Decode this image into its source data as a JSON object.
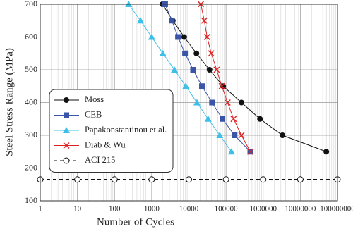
{
  "chart_data": {
    "type": "line",
    "x_label": "Number of Cycles",
    "y_label": "Steel Stress Range (MPa)",
    "xscale": "log",
    "xlim": [
      1,
      100000000
    ],
    "xticks": [
      1,
      10,
      100,
      1000,
      10000,
      100000,
      1000000,
      10000000,
      100000000
    ],
    "ylim": [
      100,
      700
    ],
    "yticks": [
      100,
      200,
      300,
      400,
      500,
      600,
      700
    ],
    "grid": true,
    "legend": "lower left",
    "series": [
      {
        "name": "Moss",
        "color": "#111111",
        "marker": "circle",
        "x": [
          1950,
          3700,
          7500,
          16000,
          36000,
          84000,
          260000,
          820000,
          3300000,
          50000000
        ],
        "values": [
          700,
          650,
          600,
          550,
          500,
          450,
          400,
          350,
          300,
          250
        ]
      },
      {
        "name": "CEB",
        "color": "#3a54a8",
        "marker": "square",
        "x": [
          2300,
          3500,
          5100,
          7900,
          13000,
          22500,
          42000,
          80000,
          170000,
          450000
        ],
        "values": [
          700,
          650,
          600,
          550,
          500,
          450,
          400,
          350,
          300,
          250
        ]
      },
      {
        "name": "Papakonstantinou et al.",
        "color": "#3dbfe8",
        "marker": "triangle",
        "x": [
          240,
          500,
          1000,
          2000,
          4100,
          8300,
          16500,
          33000,
          68000,
          140000
        ],
        "values": [
          700,
          650,
          600,
          550,
          500,
          450,
          400,
          350,
          300,
          250
        ]
      },
      {
        "name": "Diab & Wu",
        "color": "#dd2222",
        "marker": "cross",
        "x": [
          21000,
          26000,
          31000,
          40000,
          56000,
          77000,
          110000,
          160000,
          260000,
          450000
        ],
        "values": [
          700,
          650,
          600,
          550,
          500,
          450,
          400,
          350,
          300,
          250
        ]
      },
      {
        "name": "ACI 215",
        "color": "#111111",
        "marker": "open-circle",
        "dash": true,
        "x": [
          1,
          10,
          100,
          1000,
          10000,
          100000,
          1000000,
          10000000,
          100000000
        ],
        "values": [
          165,
          165,
          165,
          165,
          165,
          165,
          165,
          165,
          165
        ]
      }
    ]
  }
}
